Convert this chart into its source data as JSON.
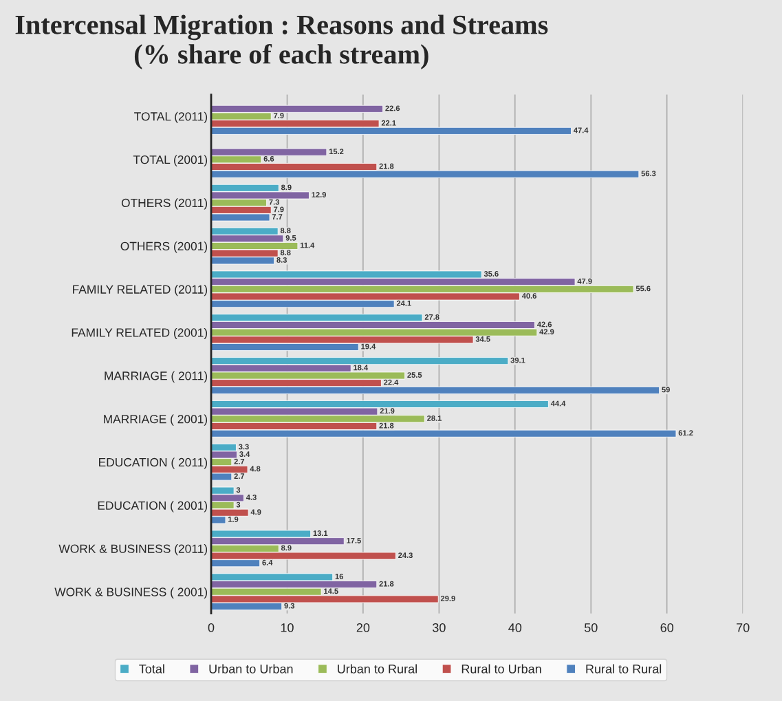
{
  "chart_data": {
    "type": "bar",
    "orientation": "horizontal",
    "title": "Intercensal Migration : Reasons and Streams (% share of each stream)",
    "categories": [
      "TOTAL (2011)",
      "TOTAL (2001)",
      "OTHERS (2011)",
      "OTHERS (2001)",
      "FAMILY RELATED (2011)",
      "FAMILY RELATED (2001)",
      "MARRIAGE ( 2011)",
      "MARRIAGE ( 2001)",
      "EDUCATION ( 2011)",
      "EDUCATION ( 2001)",
      "WORK & BUSINESS (2011)",
      "WORK & BUSINESS ( 2001)"
    ],
    "series": [
      {
        "name": "Total",
        "color": "#4bacc6",
        "values": [
          null,
          null,
          8.9,
          8.8,
          35.6,
          27.8,
          39.1,
          44.4,
          3.3,
          3,
          13.1,
          16
        ]
      },
      {
        "name": "Urban to Urban",
        "color": "#8064a2",
        "values": [
          22.6,
          15.2,
          12.9,
          9.5,
          47.9,
          42.6,
          18.4,
          21.9,
          3.4,
          4.3,
          17.5,
          21.8
        ]
      },
      {
        "name": "Urban to Rural",
        "color": "#9bbb59",
        "values": [
          7.9,
          6.6,
          7.3,
          11.4,
          55.6,
          42.9,
          25.5,
          28.1,
          2.7,
          3,
          8.9,
          14.5
        ]
      },
      {
        "name": "Rural to Urban",
        "color": "#c0504d",
        "values": [
          22.1,
          21.8,
          7.9,
          8.8,
          40.6,
          34.5,
          22.4,
          21.8,
          4.8,
          4.9,
          24.3,
          29.9
        ]
      },
      {
        "name": "Rural to Rural",
        "color": "#4f81bd",
        "values": [
          47.4,
          56.3,
          7.7,
          8.3,
          24.1,
          19.4,
          59,
          61.2,
          2.7,
          1.9,
          6.4,
          9.3
        ]
      }
    ],
    "xlim": [
      0,
      70
    ],
    "xticks": [
      0,
      10,
      20,
      30,
      40,
      50,
      60,
      70
    ],
    "grid": "x",
    "legend": "bottom",
    "data_labels": true
  }
}
